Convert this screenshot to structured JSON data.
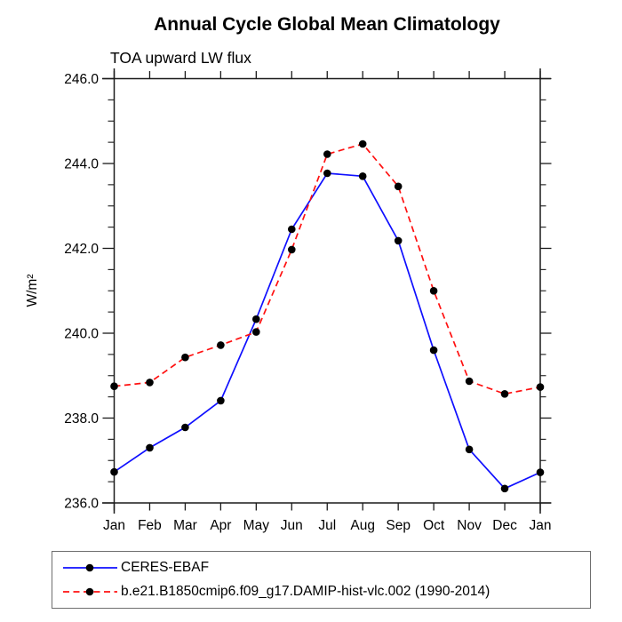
{
  "page": {
    "background": "#ffffff"
  },
  "chart": {
    "title": "Annual Cycle Global Mean Climatology",
    "subtitle": "TOA upward LW flux",
    "ylabel": "W/m²"
  },
  "chart_data": {
    "type": "line",
    "title": "Annual Cycle Global Mean Climatology",
    "subtitle": "TOA upward LW flux",
    "xlabel": "",
    "ylabel": "W/m²",
    "categories": [
      "Jan",
      "Feb",
      "Mar",
      "Apr",
      "May",
      "Jun",
      "Jul",
      "Aug",
      "Sep",
      "Oct",
      "Nov",
      "Dec",
      "Jan"
    ],
    "ylim": [
      236.0,
      246.0
    ],
    "ytick_major": [
      246.0,
      244.0,
      242.0,
      240.0,
      238.0,
      236.0
    ],
    "ytick_major_labels": [
      "246.0",
      "244.0",
      "242.0",
      "240.0",
      "238.0",
      "236.0"
    ],
    "ytick_minor_step": 0.5,
    "grid": false,
    "legend_position": "bottom",
    "axis_color": "#1a1a1a",
    "marker_color": "#000000",
    "series": [
      {
        "name": "CERES-EBAF",
        "color": "#0f0fff",
        "line_style": "solid",
        "marker": "filled-black-dot",
        "values": [
          236.73,
          237.3,
          237.78,
          238.41,
          240.33,
          242.45,
          243.77,
          243.7,
          242.18,
          239.6,
          237.26,
          236.34,
          236.72
        ]
      },
      {
        "name": "b.e21.B1850cmip6.f09_g17.DAMIP-hist-vlc.002 (1990-2014)",
        "color": "#ff1010",
        "line_style": "dashed",
        "marker": "filled-black-dot",
        "values": [
          238.75,
          238.84,
          239.43,
          239.72,
          240.03,
          241.97,
          244.22,
          244.46,
          243.46,
          241.0,
          238.87,
          238.57,
          238.73
        ]
      }
    ]
  }
}
